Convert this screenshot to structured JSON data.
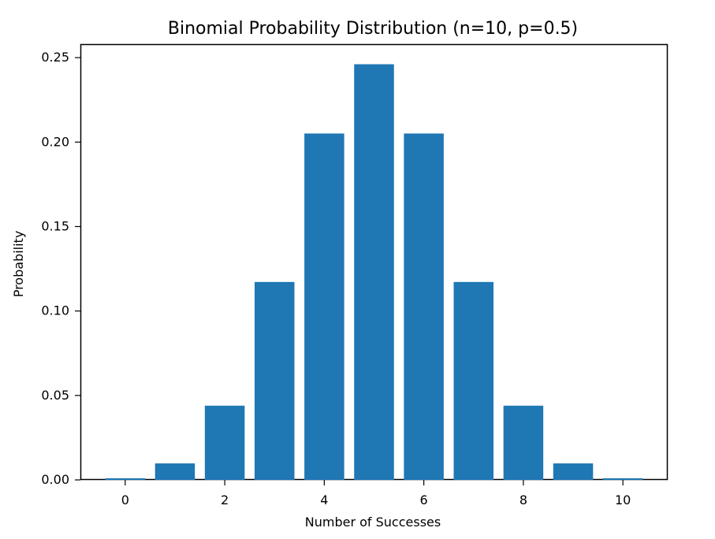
{
  "chart_data": {
    "type": "bar",
    "title": "Binomial Probability Distribution (n=10, p=0.5)",
    "xlabel": "Number of Successes",
    "ylabel": "Probability",
    "x": [
      0,
      1,
      2,
      3,
      4,
      5,
      6,
      7,
      8,
      9,
      10
    ],
    "values": [
      0.000977,
      0.009766,
      0.043945,
      0.117188,
      0.205078,
      0.246094,
      0.205078,
      0.117188,
      0.043945,
      0.009766,
      0.000977
    ],
    "xlim": [
      -0.9,
      10.9
    ],
    "ylim": [
      0,
      0.258
    ],
    "xticks": [
      0,
      2,
      4,
      6,
      8,
      10
    ],
    "xtick_labels": [
      "0",
      "2",
      "4",
      "6",
      "8",
      "10"
    ],
    "yticks": [
      0,
      0.05,
      0.1,
      0.15,
      0.2,
      0.25
    ],
    "ytick_labels": [
      "0.00",
      "0.05",
      "0.10",
      "0.15",
      "0.20",
      "0.25"
    ],
    "bar_width": 0.8,
    "grid": false,
    "bar_color": "#1f77b4",
    "axis_color": "#000000",
    "background": "#ffffff"
  }
}
